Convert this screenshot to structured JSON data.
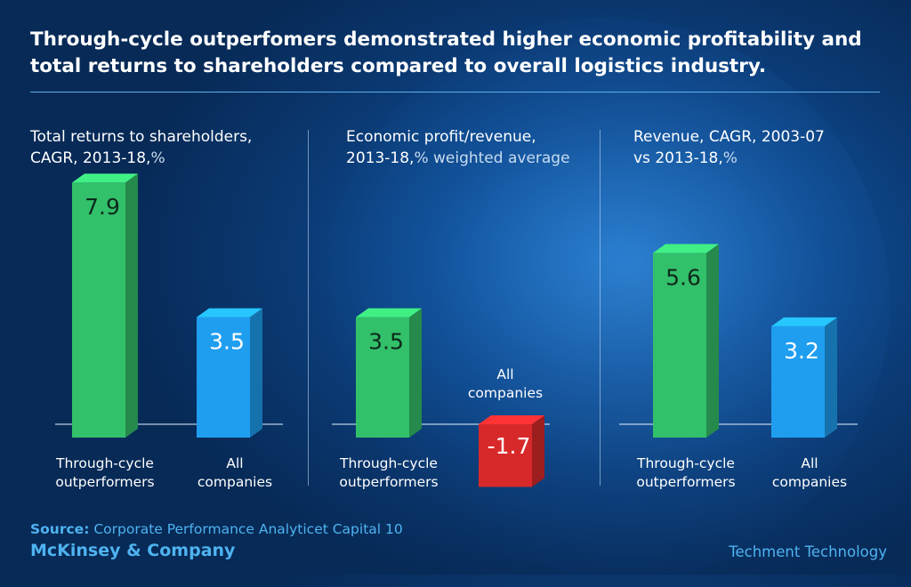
{
  "headline": "Through-cycle outperfomers demonstrated higher economic profitability and total returns to shareholders compared to overall logistics industry.",
  "panels": [
    {
      "title_line1": "Total returns to shareholders,",
      "title_line2": "CAGR, 2013-18,",
      "title_line2_unit": "%"
    },
    {
      "title_line1": "Economic profit/revenue,",
      "title_line2": "2013-18,",
      "title_line2_unit": "% weighted average"
    },
    {
      "title_line1": "Revenue, CAGR, 2003-07",
      "title_line2": "vs 2013-18,",
      "title_line2_unit": "%"
    }
  ],
  "chart_data": [
    {
      "type": "bar",
      "categories": [
        "Through-cycle outperformers",
        "All companies"
      ],
      "values": [
        7.9,
        3.5
      ],
      "ylim": [
        0,
        7.9
      ]
    },
    {
      "type": "bar",
      "categories": [
        "Through-cycle outperformers",
        "All companies"
      ],
      "values": [
        3.5,
        -1.7
      ],
      "ylim": [
        -1.7,
        7.9
      ]
    },
    {
      "type": "bar",
      "categories": [
        "Through-cycle outperformers",
        "All companies"
      ],
      "values": [
        5.6,
        3.2
      ],
      "ylim": [
        0,
        7.9
      ]
    }
  ],
  "categories_display": [
    [
      "Through-cycle",
      "outperformers"
    ],
    [
      "All",
      "companies"
    ]
  ],
  "colors": {
    "outperformer_front": "#33c06a",
    "all_companies_front": "#1f9ef0",
    "negative_front": "#d8292a",
    "accent_text": "#4fb3f0"
  },
  "footer": {
    "source_label": "Source:",
    "source_text": " Corporate Performance Analyticet Capital 10",
    "company": "McKinsey & Company",
    "credit": "Techment Technology"
  }
}
